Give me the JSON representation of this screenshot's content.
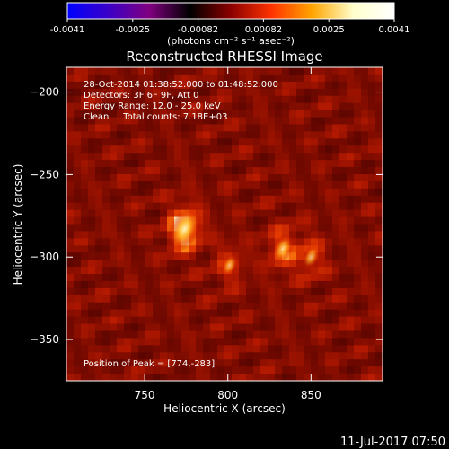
{
  "chart_data": {
    "type": "heatmap",
    "title": "Reconstructed RHESSI Image",
    "xlabel": "Heliocentric X (arcsec)",
    "ylabel": "Heliocentric Y (arcsec)",
    "xlim": [
      703,
      893
    ],
    "ylim": [
      -375,
      -185
    ],
    "x_ticks": [
      750,
      800,
      850
    ],
    "y_ticks": [
      -200,
      -250,
      -300,
      -350
    ],
    "colorbar": {
      "range": [
        -0.0041,
        0.0041
      ],
      "ticks": [
        "-0.0041",
        "-0.0025",
        "-0.00082",
        "0.00082",
        "0.0025",
        "0.0041"
      ],
      "unit_label": "(photons cm⁻² s⁻¹ asec⁻²)",
      "colors": [
        "#0000ff",
        "#3a00c8",
        "#800080",
        "#000000",
        "#8b0000",
        "#ff3300",
        "#ffa500",
        "#ffffcc",
        "#ffffff"
      ]
    },
    "info_lines": [
      "28-Oct-2014 01:38:52.000 to 01:48:52.000",
      "Detectors: 3F 6F 9F, Att 0",
      "Energy Range: 12.0 - 25.0 keV",
      "Clean     Total counts: 7.18E+03"
    ],
    "peak_label": "Position of Peak = [774,-283]",
    "sources": [
      {
        "x": 774,
        "y": -283,
        "intensity": 1.0
      },
      {
        "x": 833,
        "y": -295,
        "intensity": 0.55
      },
      {
        "x": 850,
        "y": -300,
        "intensity": 0.4
      },
      {
        "x": 801,
        "y": -305,
        "intensity": 0.35
      }
    ]
  },
  "footer": {
    "date": "11-Jul-2017 07:50"
  }
}
